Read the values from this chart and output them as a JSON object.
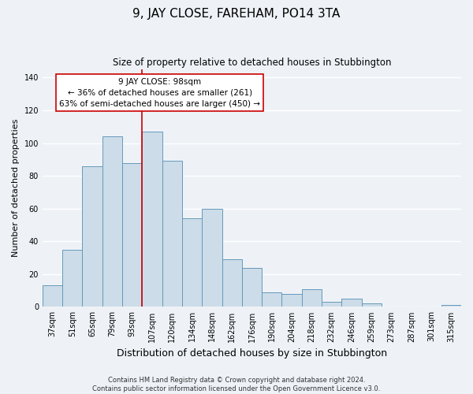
{
  "title": "9, JAY CLOSE, FAREHAM, PO14 3TA",
  "subtitle": "Size of property relative to detached houses in Stubbington",
  "xlabel": "Distribution of detached houses by size in Stubbington",
  "ylabel": "Number of detached properties",
  "footer_line1": "Contains HM Land Registry data © Crown copyright and database right 2024.",
  "footer_line2": "Contains public sector information licensed under the Open Government Licence v3.0.",
  "categories": [
    "37sqm",
    "51sqm",
    "65sqm",
    "79sqm",
    "93sqm",
    "107sqm",
    "120sqm",
    "134sqm",
    "148sqm",
    "162sqm",
    "176sqm",
    "190sqm",
    "204sqm",
    "218sqm",
    "232sqm",
    "246sqm",
    "259sqm",
    "273sqm",
    "287sqm",
    "301sqm",
    "315sqm"
  ],
  "values": [
    13,
    35,
    86,
    104,
    88,
    107,
    89,
    54,
    60,
    29,
    24,
    9,
    8,
    11,
    3,
    5,
    2,
    0,
    0,
    0,
    1
  ],
  "bar_color": "#ccdce8",
  "bar_edge_color": "#6699bb",
  "vline_x": 4.5,
  "vline_color": "#cc0000",
  "annotation_title": "9 JAY CLOSE: 98sqm",
  "annotation_line1": "← 36% of detached houses are smaller (261)",
  "annotation_line2": "63% of semi-detached houses are larger (450) →",
  "annotation_box_color": "#ffffff",
  "annotation_box_edge_color": "#cc0000",
  "ylim": [
    0,
    145
  ],
  "yticks": [
    0,
    20,
    40,
    60,
    80,
    100,
    120,
    140
  ],
  "background_color": "#eef2f7",
  "grid_color": "#ffffff",
  "title_fontsize": 11,
  "subtitle_fontsize": 8.5,
  "xlabel_fontsize": 9,
  "ylabel_fontsize": 8,
  "tick_fontsize": 7,
  "footer_fontsize": 6
}
